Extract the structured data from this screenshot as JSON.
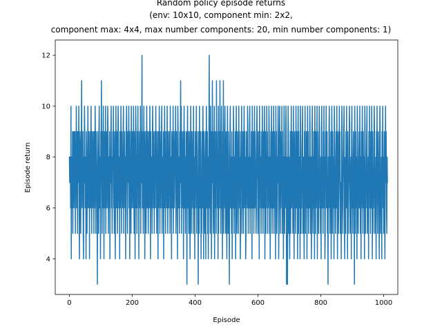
{
  "chart_data": {
    "type": "line",
    "title_lines": [
      "Random policy episode returns",
      "(env: 10x10, component min: 2x2,",
      "component max: 4x4, max number components: 20, min number components: 1)"
    ],
    "xlabel": "Episode",
    "ylabel": "Episode return",
    "xlim": [
      -45,
      1045
    ],
    "ylim": [
      2.6,
      12.6
    ],
    "xticks": [
      0,
      200,
      400,
      600,
      800,
      1000
    ],
    "yticks": [
      4,
      6,
      8,
      10,
      12
    ],
    "grid": false,
    "line_color": "#1f77b4",
    "series": [
      {
        "x_start": 0,
        "x_step": 1,
        "values": [
          8,
          7,
          8,
          8,
          6,
          10,
          4,
          7,
          8,
          6,
          9,
          5,
          8,
          9,
          7,
          6,
          9,
          8,
          9,
          5,
          8,
          7,
          10,
          6,
          9,
          8,
          5,
          9,
          7,
          8,
          10,
          6,
          4,
          8,
          9,
          7,
          5,
          8,
          9,
          11,
          6,
          8,
          7,
          9,
          5,
          4,
          8,
          7,
          10,
          9,
          6,
          8,
          7,
          4,
          9,
          8,
          5,
          7,
          8,
          10,
          6,
          9,
          7,
          8,
          4,
          9,
          7,
          6,
          8,
          10,
          7,
          5,
          9,
          8,
          6,
          7,
          9,
          8,
          5,
          9,
          6,
          7,
          10,
          8,
          5,
          9,
          8,
          7,
          6,
          3,
          9,
          7,
          8,
          5,
          9,
          10,
          6,
          8,
          7,
          4,
          9,
          8,
          11,
          7,
          5,
          9,
          6,
          8,
          10,
          7,
          4,
          8,
          9,
          6,
          7,
          10,
          5,
          8,
          9,
          7,
          6,
          8,
          10,
          9,
          5,
          7,
          8,
          6,
          9,
          4,
          8,
          7,
          9,
          10,
          6,
          8,
          5,
          7,
          9,
          8,
          10,
          6,
          7,
          5,
          9,
          8,
          4,
          7,
          10,
          8,
          6,
          9,
          7,
          5,
          8,
          10,
          9,
          6,
          7,
          8,
          4,
          9,
          6,
          7,
          10,
          8,
          5,
          9,
          7,
          8,
          6,
          9,
          10,
          5,
          8,
          7,
          9,
          6,
          8,
          4,
          7,
          9,
          10,
          8,
          6,
          5,
          9,
          7,
          8,
          10,
          6,
          9,
          4,
          8,
          7,
          9,
          5,
          10,
          8,
          6,
          7,
          9,
          8,
          6,
          10,
          7,
          5,
          9,
          8,
          4,
          7,
          10,
          9,
          6,
          8,
          5,
          9,
          7,
          10,
          6,
          8,
          4,
          9,
          7,
          8,
          6,
          10,
          5,
          9,
          7,
          8,
          12,
          6,
          9,
          7,
          5,
          8,
          10,
          6,
          9,
          4,
          7,
          8,
          9,
          5,
          7,
          10,
          8,
          6,
          9,
          7,
          5,
          8,
          9,
          6,
          7,
          10,
          8,
          4,
          9,
          6,
          8,
          7,
          5,
          9,
          10,
          8,
          6,
          7,
          9,
          5,
          8,
          6,
          9,
          7,
          10,
          6,
          8,
          5,
          9,
          7,
          8,
          4,
          9,
          6,
          7,
          10,
          8,
          5,
          9,
          7,
          6,
          8,
          9,
          10,
          5,
          7,
          8,
          6,
          9,
          4,
          7,
          8,
          10,
          6,
          9,
          5,
          8,
          7,
          9,
          6,
          10,
          8,
          5,
          7,
          9,
          6,
          8,
          7,
          9,
          5,
          10,
          6,
          8,
          7,
          4,
          9,
          8,
          6,
          7,
          10,
          5,
          9,
          8,
          6,
          7,
          9,
          8,
          10,
          5,
          6,
          9,
          7,
          8,
          4,
          10,
          9,
          6,
          8,
          7,
          5,
          9,
          6,
          8,
          11,
          7,
          10,
          5,
          9,
          8,
          6,
          7,
          9,
          4,
          8,
          10,
          6,
          9,
          7,
          5,
          8,
          6,
          9,
          7,
          3,
          8,
          10,
          6,
          9,
          7,
          5,
          8,
          9,
          6,
          4,
          7,
          10,
          8,
          5,
          9,
          6,
          7,
          8,
          9,
          5,
          10,
          6,
          8,
          7,
          4,
          9,
          6,
          8,
          7,
          10,
          5,
          9,
          8,
          6,
          7,
          3,
          9,
          8,
          5,
          10,
          7,
          6,
          9,
          8,
          4,
          7,
          5,
          9,
          6,
          8,
          10,
          7,
          4,
          9,
          8,
          6,
          5,
          7,
          9,
          4,
          8,
          10,
          6,
          7,
          9,
          5,
          8,
          4,
          7,
          9,
          12,
          6,
          8,
          5,
          10,
          7,
          9,
          4,
          6,
          8,
          11,
          7,
          9,
          5,
          6,
          8,
          10,
          4,
          7,
          9,
          6,
          8,
          5,
          11,
          7,
          9,
          6,
          8,
          4,
          10,
          5,
          9,
          7,
          6,
          11,
          8,
          9,
          5,
          7,
          10,
          6,
          8,
          4,
          9,
          7,
          11,
          5,
          8,
          6,
          9,
          10,
          7,
          5,
          8,
          9,
          6,
          4,
          7,
          10,
          8,
          5,
          9,
          6,
          7,
          3,
          8,
          9,
          10,
          6,
          7,
          8,
          5,
          9,
          4,
          7,
          8,
          6,
          10,
          9,
          5,
          7,
          8,
          6,
          9,
          4,
          7,
          10,
          8,
          5,
          6,
          9,
          7,
          8,
          5,
          10,
          6,
          9,
          7,
          8,
          4,
          6,
          9,
          7,
          10,
          5,
          8,
          6,
          9,
          7,
          5,
          8,
          10,
          6,
          9,
          7,
          8,
          4,
          5,
          9,
          7,
          8,
          6,
          10,
          9,
          5,
          8,
          7,
          6,
          9,
          10,
          5,
          8,
          7,
          6,
          9,
          8,
          4,
          10,
          7,
          6,
          8,
          9,
          5,
          7,
          10,
          6,
          9,
          8,
          7,
          5,
          6,
          9,
          10,
          8,
          7,
          5,
          9,
          6,
          8,
          4,
          10,
          7,
          9,
          6,
          8,
          5,
          7,
          9,
          6,
          10,
          8,
          5,
          7,
          9,
          6,
          8,
          10,
          4,
          7,
          9,
          5,
          8,
          6,
          10,
          7,
          9,
          5,
          8,
          6,
          7,
          10,
          9,
          5,
          8,
          4,
          7,
          9,
          6,
          10,
          8,
          5,
          7,
          9,
          6,
          8,
          10,
          5,
          7,
          9,
          6,
          8,
          4,
          10,
          7,
          9,
          5,
          6,
          8,
          7,
          10,
          9,
          4,
          6,
          8,
          10,
          7,
          5,
          9,
          6,
          8,
          7,
          10,
          5,
          9,
          6,
          8,
          4,
          7,
          10,
          9,
          5,
          8,
          6,
          7,
          10,
          9,
          3,
          8,
          6,
          3,
          7,
          10,
          9,
          5,
          8,
          6,
          4,
          7,
          9,
          5,
          8,
          10,
          6,
          7,
          9,
          8,
          5,
          6,
          10,
          7,
          4,
          8,
          9,
          6,
          7,
          5,
          10,
          8,
          6,
          9,
          7,
          4,
          8,
          10,
          5,
          9,
          6,
          7,
          8,
          4,
          10,
          9,
          5,
          7,
          6,
          8,
          9,
          10,
          5,
          7,
          8,
          6,
          4,
          9,
          7,
          10,
          5,
          8,
          6,
          9,
          7,
          4,
          8,
          10,
          6,
          9,
          5,
          7,
          8,
          6,
          10,
          9,
          5,
          7,
          8,
          4,
          6,
          9,
          10,
          7,
          5,
          8,
          6,
          9,
          7,
          4,
          10,
          8,
          5,
          9,
          6,
          7,
          8,
          10,
          4,
          9,
          6,
          7,
          5,
          8,
          10,
          9,
          6,
          7,
          5,
          8,
          4,
          9,
          10,
          6,
          7,
          8,
          5,
          9,
          6,
          10,
          7,
          8,
          4,
          5,
          9,
          7,
          10,
          6,
          8,
          9,
          5,
          7,
          3,
          8,
          6,
          9,
          10,
          7,
          5,
          8,
          6,
          9,
          4,
          7,
          10,
          8,
          5,
          9,
          6,
          7,
          8,
          4,
          10,
          9,
          6,
          7,
          5,
          8,
          9,
          6,
          10,
          7,
          4,
          8,
          9,
          5,
          6,
          7,
          10,
          8,
          9,
          5,
          6,
          7,
          4,
          8,
          10,
          9,
          6,
          5,
          7,
          8,
          9,
          10,
          6,
          4,
          7,
          8,
          5,
          9,
          6,
          10,
          7,
          8,
          4,
          9,
          5,
          6,
          7,
          8,
          10,
          9,
          5,
          6,
          7,
          8,
          4,
          9,
          10,
          6,
          7,
          5,
          8,
          9,
          6,
          7,
          3,
          10,
          8,
          5,
          9,
          6,
          7,
          8,
          4,
          10,
          9,
          6,
          5,
          7,
          8,
          9,
          6,
          10,
          7,
          5,
          8,
          4,
          9,
          6,
          7,
          10,
          8,
          5,
          9,
          7,
          6,
          8,
          4,
          10,
          9,
          5,
          7,
          6,
          8,
          9,
          10,
          5,
          7,
          6,
          8,
          4,
          9,
          7,
          10,
          6,
          8,
          5,
          9,
          7,
          6,
          10,
          8,
          4,
          9,
          5,
          7,
          6,
          8,
          10,
          9,
          5,
          7,
          6,
          8,
          4,
          9,
          7,
          10,
          6,
          5,
          8,
          9,
          7,
          6,
          4,
          8,
          10,
          9,
          5,
          7,
          6,
          8,
          4,
          9,
          7,
          10,
          6,
          8,
          5,
          7,
          9,
          6,
          4,
          8,
          10,
          7,
          9,
          6,
          5,
          8,
          7
        ]
      }
    ]
  }
}
